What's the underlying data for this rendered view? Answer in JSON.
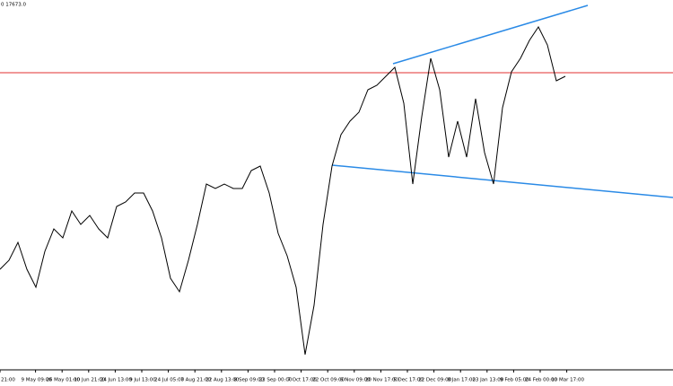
{
  "chart_data": {
    "type": "line",
    "price_label": "0 17673.0",
    "color": "#000000",
    "ylim": [
      0,
      410
    ],
    "values": [
      110,
      120,
      140,
      110,
      90,
      130,
      155,
      145,
      175,
      160,
      170,
      155,
      145,
      180,
      185,
      195,
      195,
      175,
      145,
      100,
      85,
      120,
      160,
      205,
      200,
      205,
      200,
      200,
      220,
      225,
      195,
      150,
      125,
      90,
      15,
      70,
      160,
      225,
      260,
      275,
      285,
      310,
      315,
      325,
      335,
      295,
      205,
      280,
      345,
      310,
      235,
      275,
      235,
      300,
      240,
      205,
      290,
      330,
      345,
      365,
      380,
      360,
      320,
      325
    ],
    "x_labels": [
      "21:00",
      "9 May 09:00",
      "26 May 01:00",
      "10 Jun 21:00",
      "24 Jun 13:00",
      "9 Jul 13:00",
      "24 Jul 05:00",
      "7 Aug 21:00",
      "22 Aug 13:00",
      "8 Sep 09:00",
      "23 Sep 00:00",
      "7 Oct 17:00",
      "22 Oct 09:00",
      "6 Nov 09:00",
      "20 Nov 17:00",
      "5 Dec 17:00",
      "22 Dec 09:00",
      "8 Jan 17:00",
      "23 Jan 13:00",
      "9 Feb 05:00",
      "24 Feb 00:00",
      "10 Mar 17:00"
    ]
  }
}
